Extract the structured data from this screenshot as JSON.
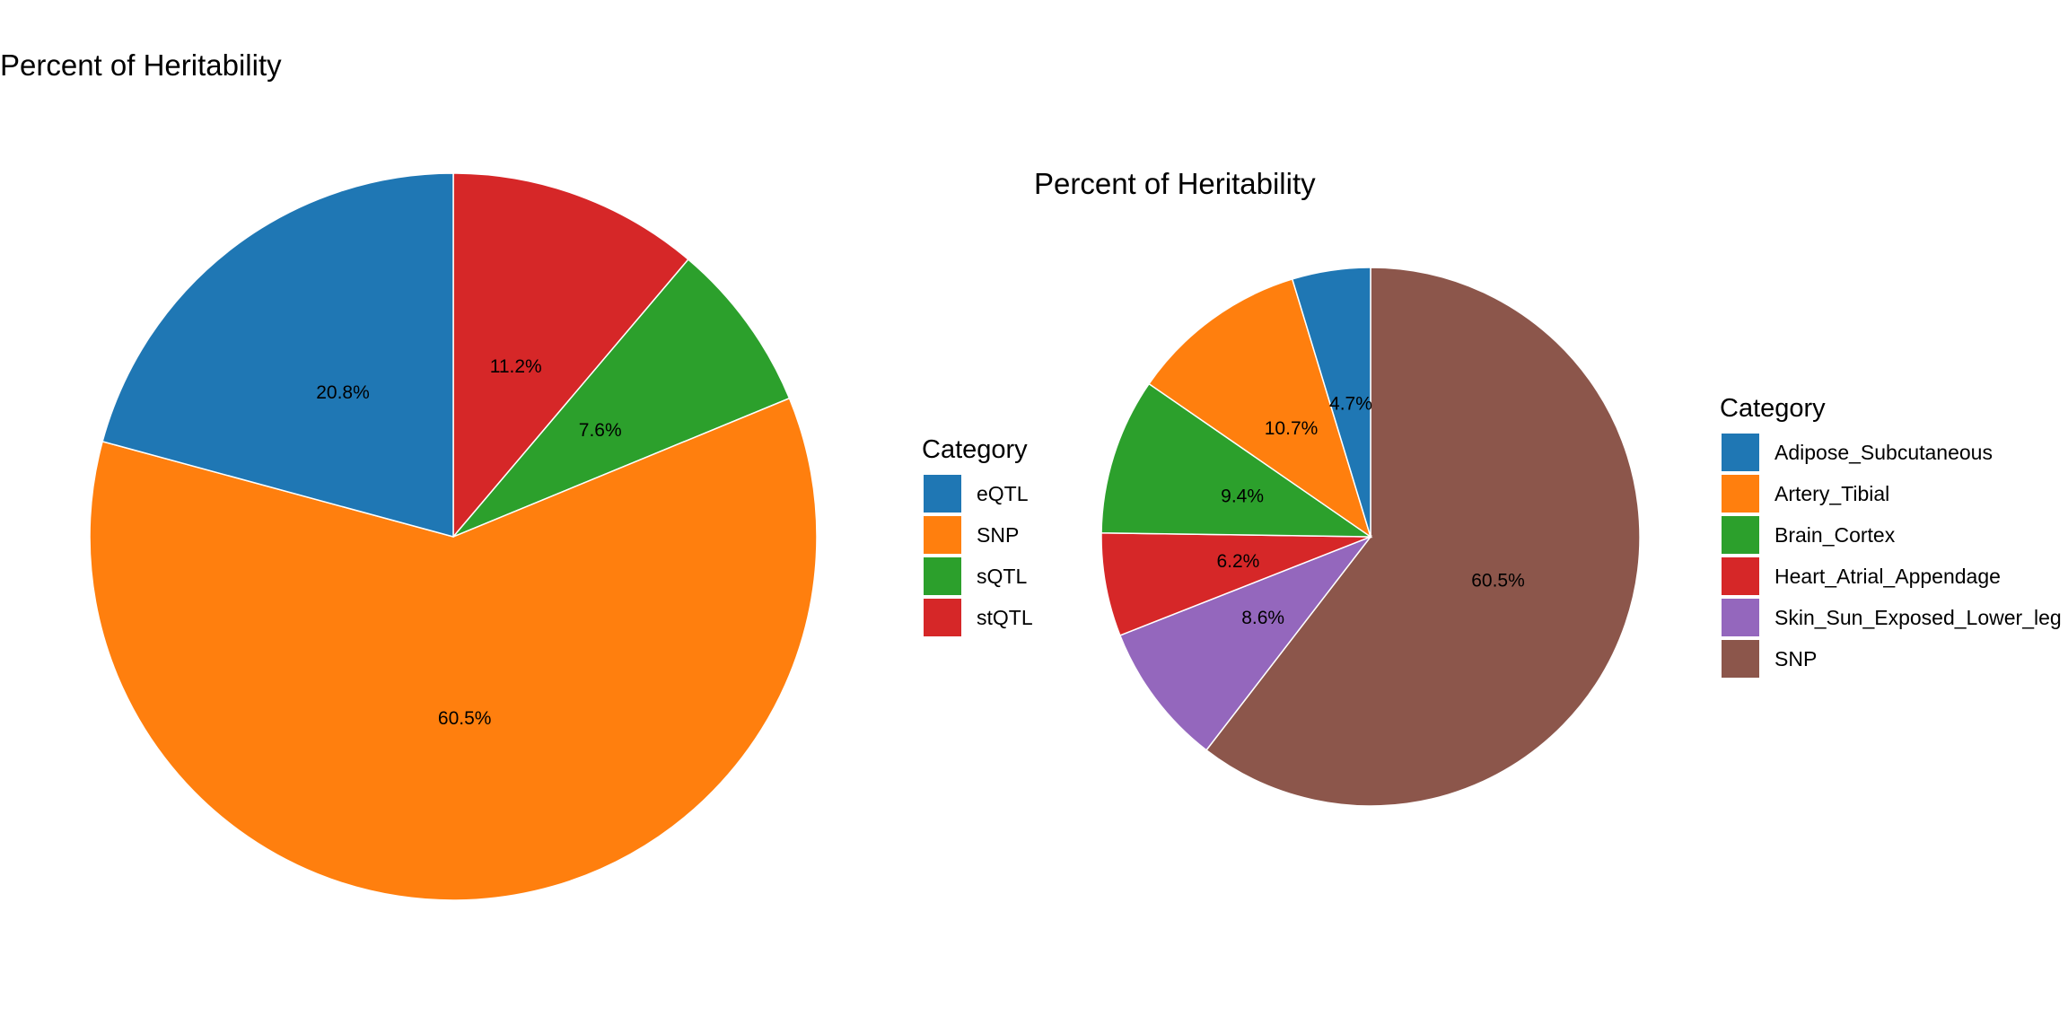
{
  "chart_data": [
    {
      "type": "pie",
      "title": "Percent of Heritability",
      "legend_title": "Category",
      "legend_position": "right",
      "categories": [
        "eQTL",
        "SNP",
        "sQTL",
        "stQTL"
      ],
      "colors": [
        "#1f77b4",
        "#ff7f0e",
        "#2ca02c",
        "#d62728"
      ],
      "values": [
        20.8,
        60.5,
        7.6,
        11.2
      ],
      "labels": [
        "20.8%",
        "60.5%",
        "7.6%",
        "11.2%"
      ],
      "clockwise_order_from_top": [
        "stQTL",
        "sQTL",
        "SNP",
        "eQTL"
      ]
    },
    {
      "type": "pie",
      "title": "Percent of Heritability",
      "legend_title": "Category",
      "legend_position": "right",
      "categories": [
        "Adipose_Subcutaneous",
        "Artery_Tibial",
        "Brain_Cortex",
        "Heart_Atrial_Appendage",
        "Skin_Sun_Exposed_Lower_leg",
        "SNP"
      ],
      "colors": [
        "#1f77b4",
        "#ff7f0e",
        "#2ca02c",
        "#d62728",
        "#9467bd",
        "#8c564b"
      ],
      "values": [
        4.7,
        10.7,
        9.4,
        6.2,
        8.6,
        60.5
      ],
      "labels": [
        "4.7%",
        "10.7%",
        "9.4%",
        "6.2%",
        "8.6%",
        "60.5%"
      ],
      "clockwise_order_from_top": [
        "SNP",
        "Skin_Sun_Exposed_Lower_leg",
        "Heart_Atrial_Appendage",
        "Brain_Cortex",
        "Artery_Tibial",
        "Adipose_Subcutaneous"
      ]
    }
  ]
}
